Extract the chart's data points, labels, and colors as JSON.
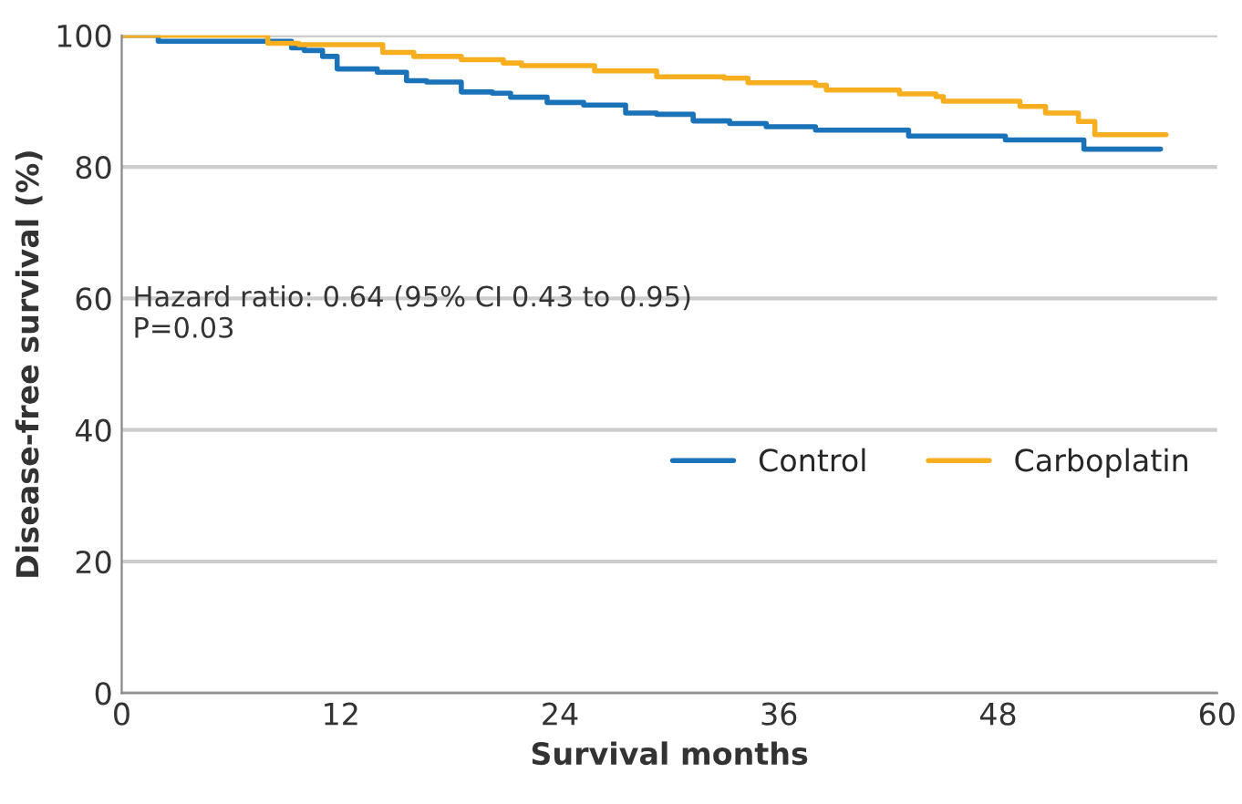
{
  "chart_data": {
    "type": "step",
    "xlabel": "Survival months",
    "ylabel": "Disease-free survival (%)",
    "xlim": [
      0,
      60
    ],
    "xticks": [
      0,
      12,
      24,
      36,
      48,
      60
    ],
    "ylim": [
      0,
      100
    ],
    "yticks": [
      0,
      20,
      40,
      60,
      80,
      100
    ],
    "grid": "y",
    "legend": "right",
    "annotations": [
      "Hazard ratio: 0.64 (95% CI 0.43 to 0.95)\nP=0.03"
    ],
    "series": [
      {
        "name": "Control",
        "color": "#1a72b9",
        "x": [
          0,
          2,
          9.3,
          10,
          11,
          11.8,
          14,
          15.6,
          16.7,
          18.6,
          20.3,
          21.3,
          23.3,
          25.3,
          27.6,
          29.3,
          31.3,
          33.3,
          35.3,
          38,
          43.1,
          48.4,
          52.7,
          56.9
        ],
        "values": [
          100,
          99.1,
          98.1,
          97.7,
          96.8,
          94.9,
          94.4,
          93.1,
          92.9,
          91.4,
          91.2,
          90.6,
          89.8,
          89.4,
          88.2,
          88.0,
          87.0,
          86.6,
          86.1,
          85.6,
          84.7,
          84.1,
          82.7,
          82.7
        ]
      },
      {
        "name": "Carboplatin",
        "color": "#f7ae1f",
        "x": [
          0,
          8,
          9.7,
          11.3,
          14.3,
          16,
          18.6,
          20.9,
          21.9,
          25.9,
          29.3,
          33,
          34.3,
          38,
          38.6,
          42.6,
          44.6,
          45,
          49.2,
          50.6,
          52.4,
          53.3,
          57.2
        ],
        "values": [
          100,
          98.8,
          98.6,
          98.6,
          97.4,
          96.8,
          96.3,
          95.8,
          95.4,
          94.6,
          93.7,
          93.5,
          92.8,
          92.4,
          91.7,
          91.1,
          90.7,
          90.0,
          89.2,
          88.2,
          86.9,
          84.9,
          84.9
        ]
      }
    ]
  }
}
